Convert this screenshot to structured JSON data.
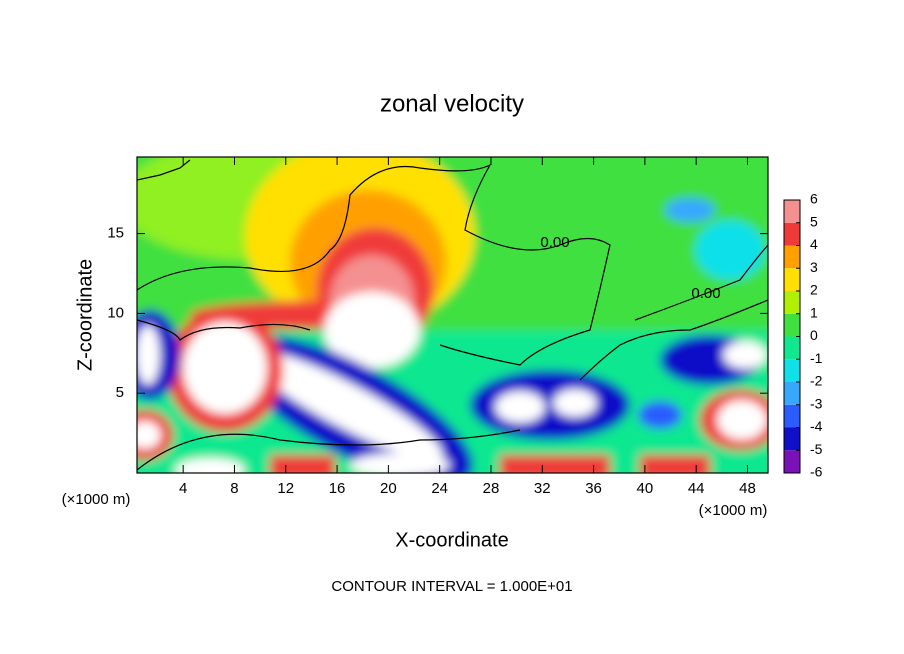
{
  "chart_data": {
    "type": "contour",
    "title": "zonal velocity",
    "x_label": "X-coordinate",
    "y_label": "Z-coordinate",
    "x_unit": "(×1000 m)",
    "footer": "CONTOUR INTERVAL = 1.000E+01",
    "xlim": [
      0.4,
      49.6
    ],
    "xticks": [
      4,
      8,
      12,
      16,
      20,
      24,
      28,
      32,
      36,
      40,
      44,
      48
    ],
    "ylim": [
      0,
      19.8
    ],
    "yticks": [
      5,
      10,
      15
    ],
    "levels": [
      -6,
      -5,
      -4,
      -3,
      -2,
      -1,
      0,
      1,
      2,
      3,
      4,
      5,
      6
    ],
    "colors": [
      "#7a10b8",
      "#1010c8",
      "#2a5cff",
      "#38a8ff",
      "#10e0e8",
      "#10e890",
      "#40e040",
      "#b0f000",
      "#ffe000",
      "#ffa000",
      "#f03a3a",
      "#f59090"
    ],
    "contour_labels": [
      {
        "value": 0,
        "label": "0.00"
      },
      {
        "value": 0,
        "label": "0.00"
      }
    ]
  }
}
